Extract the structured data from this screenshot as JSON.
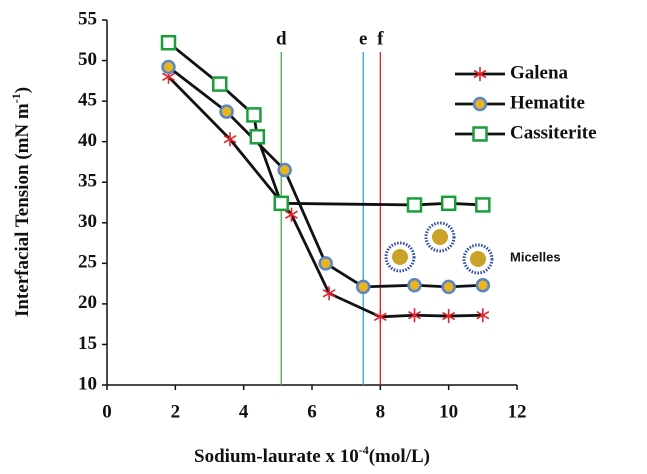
{
  "chart_data": {
    "type": "line",
    "x_label": [
      "Sodium-laurate  x 10",
      "-4",
      "(mol/L)"
    ],
    "y_label": [
      "Interfacial Tension (mN m",
      "-1",
      ")"
    ],
    "xlim": [
      0,
      12
    ],
    "xticks": [
      0,
      2,
      4,
      6,
      8,
      10,
      12
    ],
    "ylim": [
      10,
      55
    ],
    "yticks": [
      10,
      15,
      20,
      25,
      30,
      35,
      40,
      45,
      50,
      55
    ],
    "grid": false,
    "legend": "upper right",
    "series": [
      {
        "name": "Galena",
        "color": "#e8202a",
        "marker": "asterisk",
        "x": [
          1.8,
          3.6,
          5.4,
          6.5,
          8.0,
          9.0,
          10.0,
          11.0
        ],
        "values": [
          48,
          40.3,
          31,
          21.3,
          18.4,
          18.6,
          18.5,
          18.6
        ]
      },
      {
        "name": "Hematite",
        "color": "#e8b520",
        "marker": "circle",
        "x": [
          1.8,
          3.5,
          5.2,
          6.4,
          7.5,
          9.0,
          10.0,
          11.0
        ],
        "values": [
          49.2,
          43.7,
          36.5,
          25,
          22.1,
          22.3,
          22.1,
          22.3
        ]
      },
      {
        "name": "Cassiterite",
        "color": "#1a9e3c",
        "marker": "square",
        "x": [
          1.8,
          3.3,
          4.3,
          4.4,
          5.1,
          9.0,
          10.0,
          11.0
        ],
        "values": [
          52.2,
          47.1,
          43.3,
          40.6,
          32.4,
          32.2,
          32.4,
          32.2
        ]
      }
    ],
    "vlines": [
      {
        "label": "d",
        "x": 5.1,
        "color": "#3cb043"
      },
      {
        "label": "e",
        "x": 7.5,
        "color": "#29a8d8"
      },
      {
        "label": "f",
        "x": 8.0,
        "color": "#e8202a"
      }
    ],
    "annotation": "Micelles"
  }
}
